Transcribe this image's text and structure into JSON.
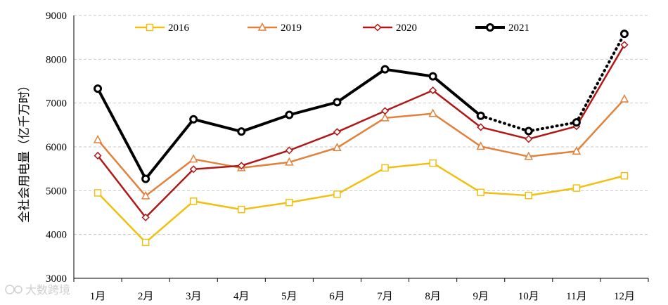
{
  "chart_data": {
    "type": "line",
    "title": "",
    "xlabel": "",
    "ylabel": "全社会用电量（亿千万时）",
    "categories": [
      "1月",
      "2月",
      "3月",
      "4月",
      "5月",
      "6月",
      "7月",
      "8月",
      "9月",
      "10月",
      "11月",
      "12月"
    ],
    "ylim": [
      3000,
      9000
    ],
    "yticks": [
      3000,
      4000,
      5000,
      6000,
      7000,
      8000,
      9000
    ],
    "grid": true,
    "legend_position": "top",
    "series": [
      {
        "name": "2016",
        "color": "#f0c010",
        "marker": "square",
        "values": [
          4950,
          3820,
          4760,
          4570,
          4730,
          4920,
          5520,
          5630,
          4960,
          4890,
          5060,
          5340
        ]
      },
      {
        "name": "2019",
        "color": "#e0823c",
        "marker": "triangle",
        "values": [
          6160,
          4880,
          5720,
          5520,
          5650,
          5980,
          6660,
          6760,
          6010,
          5780,
          5900,
          7090
        ]
      },
      {
        "name": "2020",
        "color": "#b01818",
        "marker": "diamond",
        "values": [
          5800,
          4390,
          5490,
          5570,
          5920,
          6340,
          6820,
          7290,
          6450,
          6180,
          6470,
          8330
        ]
      },
      {
        "name": "2021",
        "color": "#000000",
        "marker": "circle",
        "dotted_from_index": 8,
        "values": [
          7330,
          5270,
          6630,
          6350,
          6730,
          7020,
          7770,
          7610,
          6710,
          6360,
          6560,
          8580
        ]
      }
    ]
  },
  "watermark": "大数跨境"
}
